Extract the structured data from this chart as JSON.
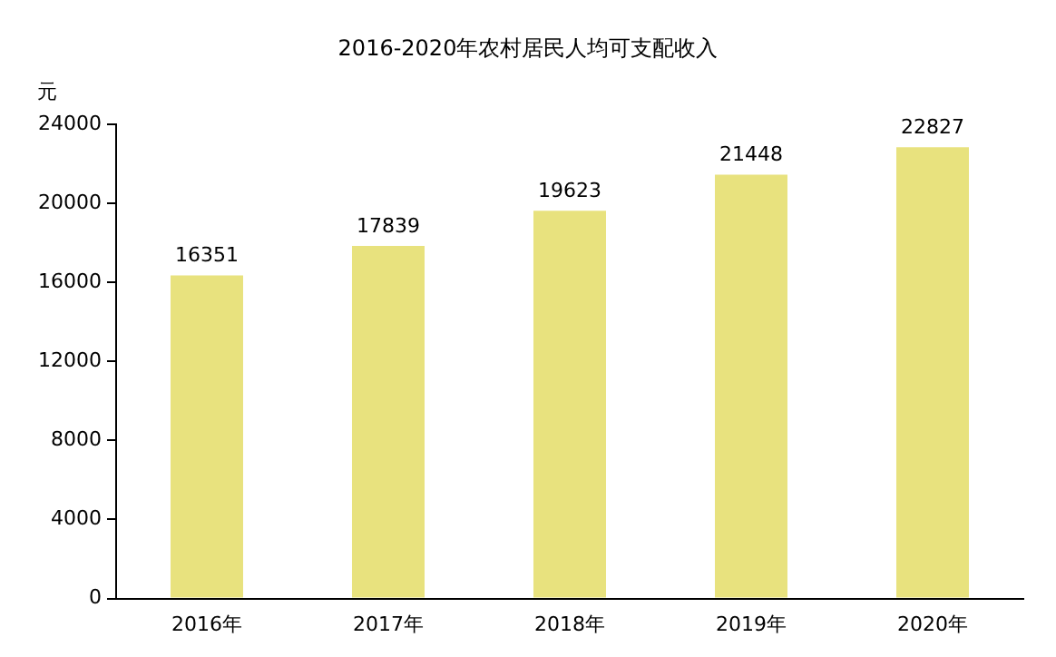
{
  "chart_data": {
    "type": "bar",
    "title": "2016-2020年农村居民人均可支配收入",
    "ylabel": "元",
    "categories": [
      "2016年",
      "2017年",
      "2018年",
      "2019年",
      "2020年"
    ],
    "values": [
      16351,
      17839,
      19623,
      21448,
      22827
    ],
    "color": "#e8e27e",
    "ylim": [
      0,
      24000
    ],
    "yticks": [
      0,
      4000,
      8000,
      12000,
      16000,
      20000,
      24000
    ],
    "grid": false,
    "data_labels": true
  }
}
